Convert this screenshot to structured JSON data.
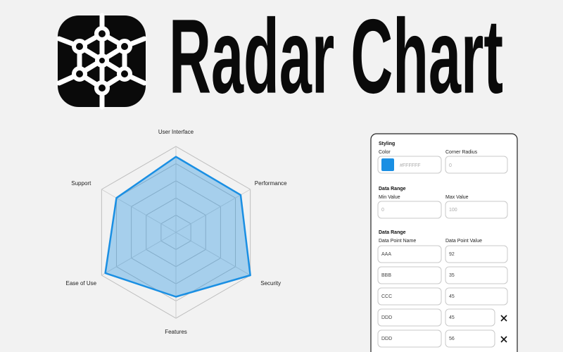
{
  "header": {
    "title": "Radar Chart"
  },
  "chart_data": {
    "type": "radar",
    "categories": [
      "User Interface",
      "Performance",
      "Security",
      "Features",
      "Ease of Use",
      "Support"
    ],
    "values": [
      88,
      87,
      100,
      75,
      95,
      80
    ],
    "color": "#1a8fe3",
    "rlim": [
      0,
      100
    ],
    "rticks": [
      20,
      40,
      60,
      80,
      100
    ],
    "grid": true
  },
  "panel": {
    "styling": {
      "heading": "Styling",
      "color_label": "Color",
      "color_value": "#FFFFFF",
      "swatch": "#1a8fe3",
      "radius_label": "Corner Radius",
      "radius_value": "0"
    },
    "range": {
      "heading": "Data Range",
      "min_label": "Min Value",
      "min_value": "0",
      "max_label": "Max Value",
      "max_value": "100"
    },
    "points": {
      "heading": "Data Range",
      "name_label": "Data Point Name",
      "value_label": "Data Point Value",
      "rows": [
        [
          "AAA",
          "92"
        ],
        [
          "BBB",
          "35"
        ],
        [
          "CCC",
          "45"
        ],
        [
          "DDD",
          "45"
        ],
        [
          "DDD",
          "56"
        ]
      ]
    }
  }
}
